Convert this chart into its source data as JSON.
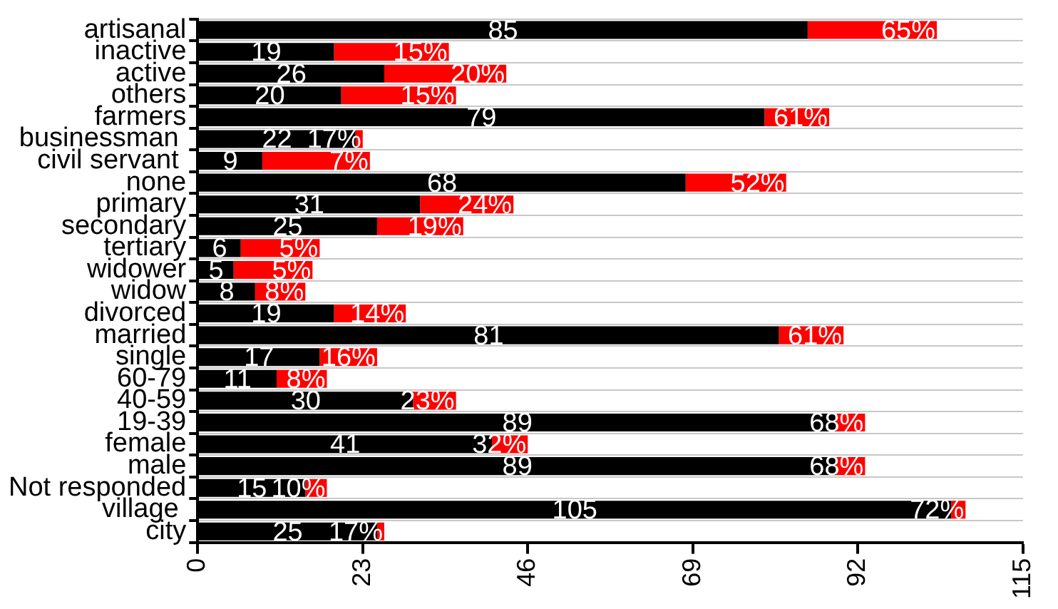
{
  "chart_data": {
    "type": "bar",
    "orientation": "horizontal",
    "stacked": true,
    "categories": [
      "artisanal",
      "inactive",
      "active",
      "others",
      "farmers",
      "businessman ",
      "civil servant ",
      "none",
      "primary",
      "secondary",
      "tertiary",
      "widower",
      "widow",
      "divorced",
      "married",
      "single",
      "60-79",
      "40-59",
      "19-39",
      "female",
      "male",
      "Not responded",
      "village ",
      "city"
    ],
    "series": [
      {
        "color": "#000000",
        "values": [
          85,
          19,
          26,
          20,
          79,
          22,
          9,
          68,
          31,
          25,
          6,
          5,
          8,
          19,
          81,
          17,
          11,
          30,
          89,
          41,
          89,
          15,
          105,
          25
        ],
        "value_labels": [
          "85",
          "19",
          "26",
          "20",
          "79",
          "22",
          "9",
          "68",
          "31",
          "25",
          "6",
          "5",
          "8",
          "19",
          "81",
          "17",
          "11",
          "30",
          "89",
          "41",
          "89",
          "15",
          "105",
          "25"
        ]
      },
      {
        "color": "#ff0000",
        "values": [
          18,
          16,
          17,
          16,
          9,
          1,
          15,
          14,
          13,
          12,
          11,
          11,
          7,
          10,
          9,
          8,
          7,
          6,
          4,
          5,
          4,
          3,
          2,
          1
        ]
      }
    ],
    "annotations": [
      {
        "text": "65%",
        "x": 103,
        "y": "artisanal"
      },
      {
        "text": "15%",
        "x": 35,
        "y": "inactive"
      },
      {
        "text": "20%",
        "x": 43,
        "y": "active"
      },
      {
        "text": "15%",
        "x": 36,
        "y": "others"
      },
      {
        "text": "61%",
        "x": 88,
        "y": "farmers"
      },
      {
        "text": "17%",
        "x": 23,
        "y": "businessman "
      },
      {
        "text": "7%",
        "x": 24,
        "y": "civil servant "
      },
      {
        "text": "52%",
        "x": 82,
        "y": "none"
      },
      {
        "text": "24%",
        "x": 44,
        "y": "primary"
      },
      {
        "text": "19%",
        "x": 37,
        "y": "secondary"
      },
      {
        "text": "5%",
        "x": 17,
        "y": "tertiary"
      },
      {
        "text": "5%",
        "x": 16,
        "y": "widower"
      },
      {
        "text": "8%",
        "x": 15,
        "y": "widow"
      },
      {
        "text": "14%",
        "x": 29,
        "y": "divorced"
      },
      {
        "text": "61%",
        "x": 90,
        "y": "married"
      },
      {
        "text": "16%",
        "x": 25,
        "y": "single"
      },
      {
        "text": "8%",
        "x": 18,
        "y": "60-79"
      },
      {
        "text": "23%",
        "x": 36,
        "y": "40-59"
      },
      {
        "text": "68%",
        "x": 93,
        "y": "19-39"
      },
      {
        "text": "32%",
        "x": 46,
        "y": "female"
      },
      {
        "text": "68%",
        "x": 93,
        "y": "male"
      },
      {
        "text": "10%",
        "x": 18,
        "y": "Not responded"
      },
      {
        "text": "72%",
        "x": 107,
        "y": "village "
      },
      {
        "text": "17%",
        "x": 26,
        "y": "city"
      }
    ],
    "xlim": [
      0,
      115
    ],
    "xticks": [
      0,
      23,
      46,
      69,
      92,
      115
    ],
    "grid": "y",
    "legend": false
  }
}
